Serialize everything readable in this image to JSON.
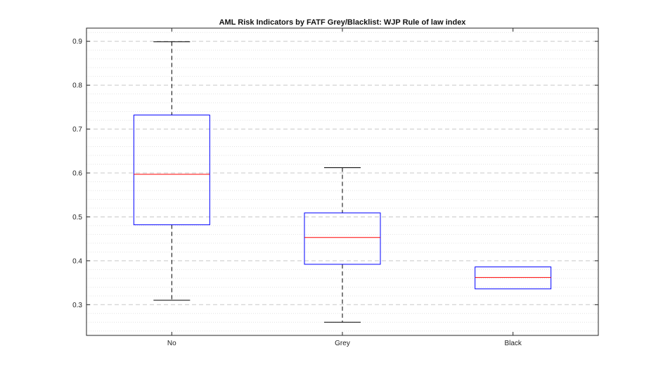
{
  "chart_data": {
    "type": "boxplot",
    "title": "AML Risk Indicators by FATF Grey/Blacklist: WJP Rule of law index",
    "xlabel": "",
    "ylabel": "",
    "categories": [
      "No",
      "Grey",
      "Black"
    ],
    "boxes": [
      {
        "category": "No",
        "min": 0.31,
        "q1": 0.482,
        "median": 0.597,
        "q3": 0.732,
        "max": 0.899
      },
      {
        "category": "Grey",
        "min": 0.26,
        "q1": 0.392,
        "median": 0.453,
        "q3": 0.509,
        "max": 0.612
      },
      {
        "category": "Black",
        "min": 0.336,
        "q1": 0.336,
        "median": 0.362,
        "q3": 0.386,
        "max": 0.386
      }
    ],
    "ylim": [
      0.23,
      0.93
    ],
    "yticks": [
      "0.3",
      "0.4",
      "0.5",
      "0.6",
      "0.7",
      "0.8",
      "0.9"
    ],
    "grid": true,
    "colors": {
      "box": "#0000ff",
      "median": "#ff0000",
      "whisker": "#000000",
      "grid": "#c8c8c8"
    }
  }
}
